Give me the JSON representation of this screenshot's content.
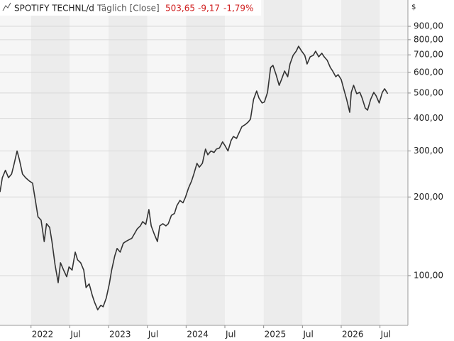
{
  "chart_data": {
    "type": "line",
    "title": "SPOTIFY TECHNL/d",
    "subtitle": "Täglich [Close]",
    "last_value": "503,65",
    "change": "-9,17",
    "change_percent": "-1,79%",
    "y_label": "$",
    "color": "#333333",
    "log_y": true,
    "grid": true,
    "xlim": [
      2021.6,
      2026.86
    ],
    "xticks": [
      2022,
      {
        "value": 2022.5,
        "label": "Jul"
      },
      2023,
      {
        "value": 2023.5,
        "label": "Jul"
      },
      2024,
      {
        "value": 2024.5,
        "label": "Jul"
      },
      2025,
      {
        "value": 2025.5,
        "label": "Jul"
      },
      2026,
      {
        "value": 2026.5,
        "label": "Jul"
      }
    ],
    "ylim": [
      64.5,
      1135
    ],
    "yticks": [
      {
        "value": 100,
        "label": "100,00"
      },
      {
        "value": 200,
        "label": "200,00"
      },
      {
        "value": 300,
        "label": "300,00"
      },
      {
        "value": 400,
        "label": "400,00"
      },
      {
        "value": 500,
        "label": "500,00"
      },
      {
        "value": 600,
        "label": "600,00"
      },
      {
        "value": 700,
        "label": "700,00"
      },
      {
        "value": 800,
        "label": "800,00"
      },
      {
        "value": 900,
        "label": "900,00"
      }
    ],
    "x": [
      2021.6,
      2021.63,
      2021.67,
      2021.71,
      2021.75,
      2021.78,
      2021.82,
      2021.85,
      2021.89,
      2021.93,
      2021.98,
      2022.02,
      2022.06,
      2022.09,
      2022.13,
      2022.17,
      2022.2,
      2022.24,
      2022.27,
      2022.31,
      2022.35,
      2022.38,
      2022.42,
      2022.46,
      2022.49,
      2022.53,
      2022.57,
      2022.6,
      2022.64,
      2022.68,
      2022.71,
      2022.75,
      2022.79,
      2022.82,
      2022.86,
      2022.9,
      2022.93,
      2022.97,
      2023.01,
      2023.04,
      2023.08,
      2023.11,
      2023.15,
      2023.19,
      2023.22,
      2023.26,
      2023.3,
      2023.33,
      2023.37,
      2023.41,
      2023.44,
      2023.48,
      2023.52,
      2023.55,
      2023.59,
      2023.63,
      2023.66,
      2023.7,
      2023.74,
      2023.77,
      2023.81,
      2023.85,
      2023.88,
      2023.92,
      2023.96,
      2023.99,
      2024.03,
      2024.07,
      2024.1,
      2024.14,
      2024.17,
      2024.21,
      2024.25,
      2024.28,
      2024.32,
      2024.36,
      2024.39,
      2024.43,
      2024.47,
      2024.5,
      2024.54,
      2024.58,
      2024.61,
      2024.65,
      2024.69,
      2024.72,
      2024.76,
      2024.8,
      2024.83,
      2024.87,
      2024.91,
      2024.94,
      2024.98,
      2025.01,
      2025.05,
      2025.09,
      2025.12,
      2025.16,
      2025.2,
      2025.23,
      2025.27,
      2025.31,
      2025.34,
      2025.38,
      2025.42,
      2025.45,
      2025.49,
      2025.53,
      2025.56,
      2025.6,
      2025.64,
      2025.67,
      2025.71,
      2025.75,
      2025.78,
      2025.82,
      2025.86,
      2025.89,
      2025.93,
      2025.96,
      2026.0,
      2026.04,
      2026.07,
      2026.11,
      2026.13,
      2026.16,
      2026.2,
      2026.24,
      2026.27,
      2026.31,
      2026.34,
      2026.38,
      2026.42,
      2026.45,
      2026.49,
      2026.53,
      2026.56,
      2026.6
    ],
    "values": [
      209,
      237,
      253,
      237,
      245,
      266,
      300,
      278,
      245,
      237,
      230,
      226,
      191,
      168,
      163,
      135,
      158,
      153,
      135,
      110,
      94,
      112,
      105,
      99,
      108,
      105,
      123,
      115,
      112,
      105,
      90,
      93,
      84,
      79,
      74,
      77,
      76,
      82,
      93,
      105,
      119,
      127,
      123,
      133,
      135,
      137,
      139,
      144,
      151,
      155,
      161,
      157,
      179,
      155,
      144,
      135,
      155,
      158,
      155,
      158,
      170,
      173,
      185,
      194,
      190,
      199,
      216,
      230,
      245,
      269,
      260,
      269,
      305,
      290,
      300,
      296,
      305,
      308,
      325,
      315,
      300,
      329,
      341,
      335,
      356,
      372,
      378,
      387,
      397,
      473,
      509,
      478,
      458,
      462,
      503,
      626,
      638,
      588,
      535,
      563,
      607,
      577,
      646,
      697,
      723,
      755,
      723,
      697,
      646,
      688,
      697,
      723,
      688,
      710,
      688,
      667,
      626,
      607,
      577,
      588,
      563,
      509,
      473,
      422,
      503,
      535,
      497,
      503,
      478,
      438,
      430,
      473,
      503,
      488,
      458,
      503,
      519,
      497
    ]
  }
}
